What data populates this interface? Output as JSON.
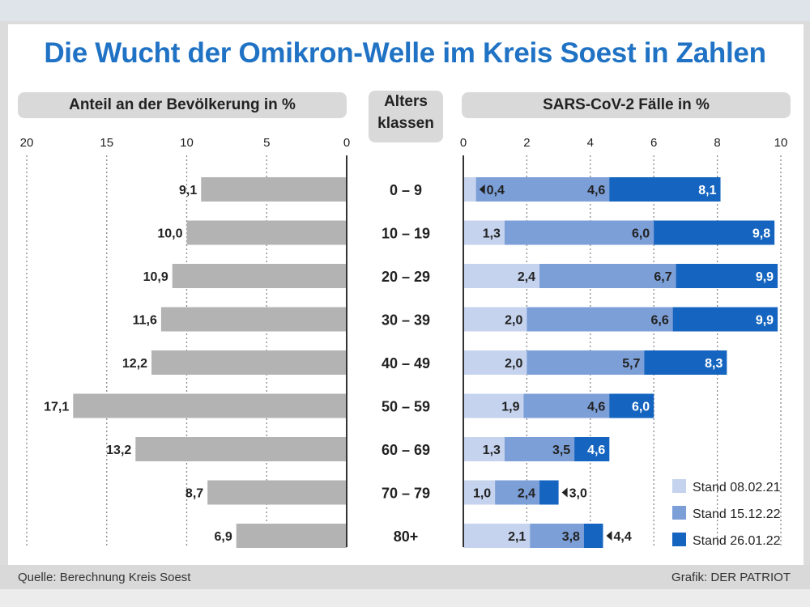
{
  "title": "Die Wucht der Omikron-Welle im Kreis Soest in Zahlen",
  "footer": {
    "source": "Quelle: Berechnung Kreis Soest",
    "graphic": "Grafik: DER PATRIOT"
  },
  "colors": {
    "title": "#1f72c4",
    "population": "#b3b3b3",
    "stand1": "#c5d3ee",
    "stand2": "#7c9fd8",
    "stand3": "#1565c0"
  },
  "chart_data": [
    {
      "type": "bar",
      "orientation": "horizontal",
      "direction": "right-to-left",
      "title": "Anteil an der Bevölkerung in %",
      "categories": [
        "0 – 9",
        "10 – 19",
        "20 – 29",
        "30 – 39",
        "40 – 49",
        "50 – 59",
        "60 – 69",
        "70 – 79",
        "80+"
      ],
      "values": [
        9.1,
        10.0,
        10.9,
        11.6,
        12.2,
        17.1,
        13.2,
        8.7,
        6.9
      ],
      "labels": [
        "9,1",
        "10,0",
        "10,9",
        "11,6",
        "12,2",
        "17,1",
        "13,2",
        "8,7",
        "6,9"
      ],
      "xlim": [
        0,
        20
      ],
      "ticks": [
        "20",
        "15",
        "10",
        "5",
        "0"
      ],
      "tick_values": [
        20,
        15,
        10,
        5,
        0
      ],
      "grid": true
    },
    {
      "type": "bar",
      "orientation": "horizontal",
      "overlapping": true,
      "title": "SARS-CoV-2 Fälle in %",
      "categories_title": [
        "Alters",
        "klassen"
      ],
      "categories": [
        "0 – 9",
        "10 – 19",
        "20 – 29",
        "30 – 39",
        "40 – 49",
        "50 – 59",
        "60 – 69",
        "70 – 79",
        "80+"
      ],
      "series": [
        {
          "name": "Stand 08.02.21",
          "values": [
            0.4,
            1.3,
            2.4,
            2.0,
            2.0,
            1.9,
            1.3,
            1.0,
            2.1
          ],
          "labels": [
            "0,4",
            "1,3",
            "2,4",
            "2,0",
            "2,0",
            "1,9",
            "1,3",
            "1,0",
            "2,1"
          ]
        },
        {
          "name": "Stand 15.12.22",
          "values": [
            4.6,
            6.0,
            6.7,
            6.6,
            5.7,
            4.6,
            3.5,
            2.4,
            3.8
          ],
          "labels": [
            "4,6",
            "6,0",
            "6,7",
            "6,6",
            "5,7",
            "4,6",
            "3,5",
            "2,4",
            "3,8"
          ]
        },
        {
          "name": "Stand 26.01.22",
          "values": [
            8.1,
            9.8,
            9.9,
            9.9,
            8.3,
            6.0,
            4.6,
            3.0,
            4.4
          ],
          "labels": [
            "8,1",
            "9,8",
            "9,9",
            "9,9",
            "8,3",
            "6,0",
            "4,6",
            "3,0",
            "4,4"
          ]
        }
      ],
      "xlim": [
        0,
        10
      ],
      "ticks": [
        "0",
        "2",
        "4",
        "6",
        "8",
        "10"
      ],
      "tick_values": [
        0,
        2,
        4,
        6,
        8,
        10
      ],
      "grid": true,
      "legend": "bottom-right"
    }
  ]
}
